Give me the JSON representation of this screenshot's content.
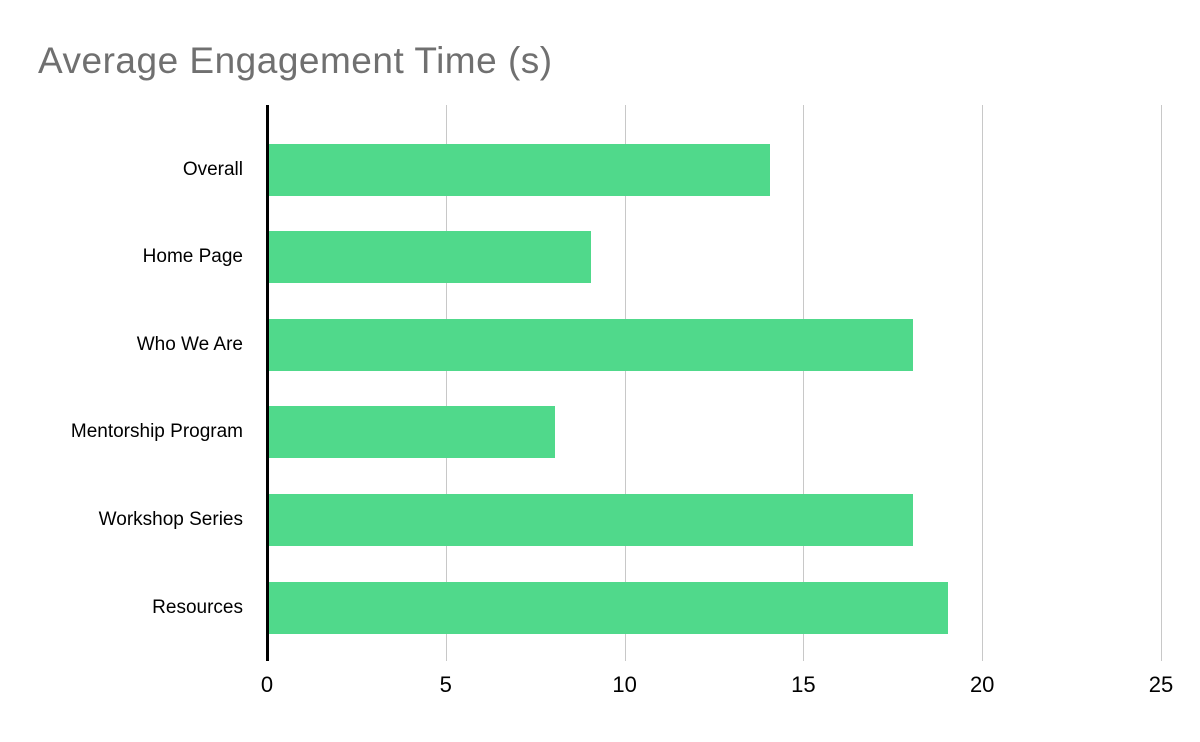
{
  "chart_data": {
    "type": "bar",
    "orientation": "horizontal",
    "title": "Average Engagement Time (s)",
    "categories": [
      "Overall",
      "Home Page",
      "Who We Are",
      "Mentorship Program",
      "Workshop Series",
      "Resources"
    ],
    "values": [
      14,
      9,
      18,
      8,
      18,
      19
    ],
    "xlabel": "",
    "ylabel": "",
    "xlim": [
      0,
      25
    ],
    "xticks": [
      0,
      5,
      10,
      15,
      20,
      25
    ],
    "grid": "vertical",
    "legend": "none",
    "bar_color": "#50d98b",
    "title_color": "#707070",
    "gridline_color": "#c8c8c8",
    "axis_color": "#000000"
  }
}
